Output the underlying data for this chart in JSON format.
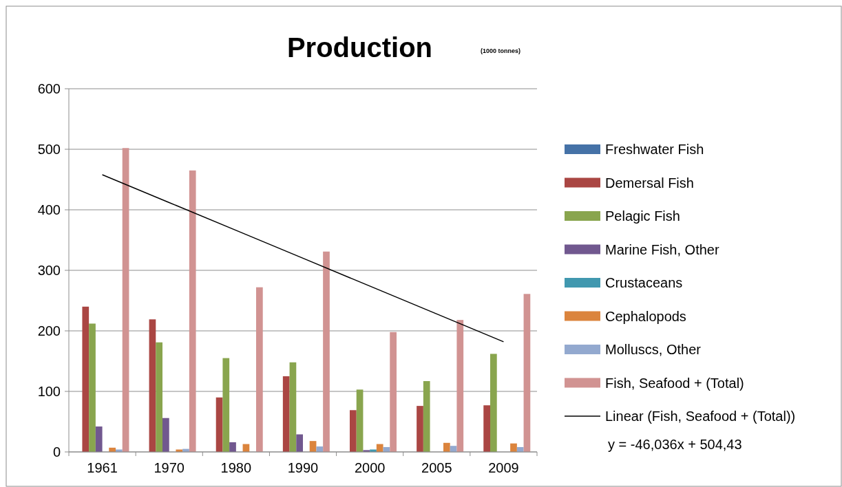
{
  "chart_data": {
    "type": "bar",
    "title": "Production",
    "subtitle": "(1000 tonnes)",
    "categories": [
      "1961",
      "1970",
      "1980",
      "1990",
      "2000",
      "2005",
      "2009"
    ],
    "series": [
      {
        "name": "Freshwater Fish",
        "color": "#4572a7",
        "values": [
          0,
          0,
          0,
          null,
          0,
          0,
          0
        ]
      },
      {
        "name": "Demersal Fish",
        "color": "#aa4643",
        "values": [
          240,
          219,
          90,
          125,
          69,
          76,
          77
        ]
      },
      {
        "name": "Pelagic Fish",
        "color": "#89a54e",
        "values": [
          212,
          181,
          155,
          148,
          103,
          117,
          162
        ]
      },
      {
        "name": "Marine Fish, Other",
        "color": "#71588f",
        "values": [
          42,
          56,
          16,
          29,
          3,
          0,
          0
        ]
      },
      {
        "name": "Crustaceans",
        "color": "#4198af",
        "values": [
          0,
          0,
          0,
          null,
          4,
          null,
          null
        ]
      },
      {
        "name": "Cephalopods",
        "color": "#db843d",
        "values": [
          7,
          4,
          13,
          18,
          13,
          15,
          14
        ]
      },
      {
        "name": "Molluscs, Other",
        "color": "#93a9cf",
        "values": [
          4,
          5,
          0,
          9,
          8,
          10,
          8
        ]
      },
      {
        "name": "Fish, Seafood + (Total)",
        "color": "#d19392",
        "values": [
          502,
          465,
          272,
          331,
          198,
          218,
          261
        ]
      },
      {
        "name": "Linear (Fish, Seafood + (Total))",
        "type": "line",
        "color": "#000000",
        "values": [
          458,
          412,
          366,
          320,
          274,
          228,
          182
        ]
      }
    ],
    "annotations": [
      "y = -46,036x + 504,43"
    ],
    "ylim": [
      0,
      600
    ],
    "yticks": [
      0,
      100,
      200,
      300,
      400,
      500,
      600
    ],
    "grid": "y",
    "legend": "right"
  }
}
